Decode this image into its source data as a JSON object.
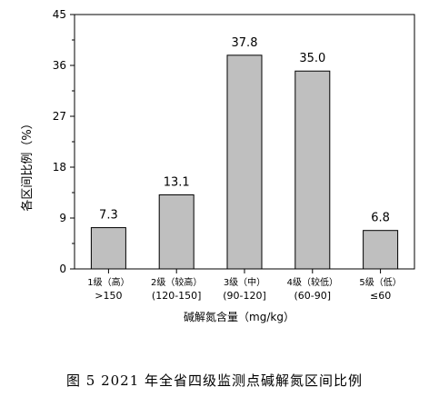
{
  "chart_data": {
    "type": "bar",
    "categories": [
      {
        "line1": "1级（高）",
        "line2": ">150"
      },
      {
        "line1": "2级（较高）",
        "line2": "(120-150]"
      },
      {
        "line1": "3级（中）",
        "line2": "(90-120]"
      },
      {
        "line1": "4级（较低）",
        "line2": "(60-90]"
      },
      {
        "line1": "5级（低）",
        "line2": "≤60"
      }
    ],
    "values": [
      7.3,
      13.1,
      37.8,
      35.0,
      6.8
    ],
    "value_labels": [
      "7.3",
      "13.1",
      "37.8",
      "35.0",
      "6.8"
    ],
    "xlabel": "碱解氮含量（mg/kg）",
    "ylabel": "各区间比例（%）",
    "ylim": [
      0,
      45
    ],
    "yticks": [
      0,
      9,
      18,
      27,
      36,
      45
    ],
    "ytick_labels": [
      "0",
      "9",
      "18",
      "27",
      "36",
      "45"
    ],
    "grid": false,
    "bar_color": "#bfbfbf",
    "bar_edge_color": "#000000"
  },
  "caption": "图 5   2021 年全省四级监测点碱解氮区间比例"
}
